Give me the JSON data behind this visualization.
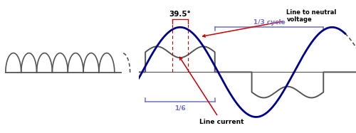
{
  "bg_color": "#ffffff",
  "line_color": "#555555",
  "blue_color": "#00008B",
  "red_color": "#cc0000",
  "purple_color": "#7070cc",
  "label_39": "39.5°",
  "label_ltn": "Line to neutral\nvoltage",
  "label_lc": "Line current",
  "label_16": "1/6",
  "label_13": "1/3 cycle"
}
